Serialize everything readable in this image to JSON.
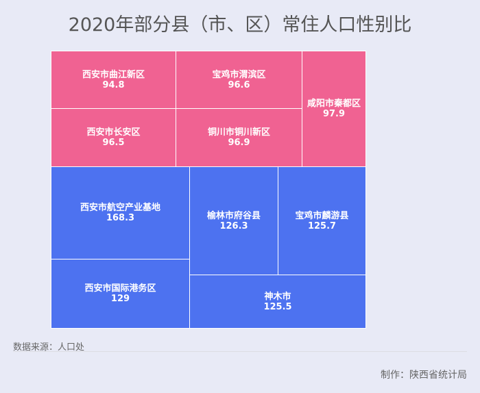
{
  "chart_data": {
    "type": "treemap",
    "title": "2020年部分县（市、区）常住人口性别比",
    "groups": [
      {
        "color": "#f06292",
        "items": [
          {
            "name": "西安市曲江新区",
            "value": 94.8
          },
          {
            "name": "西安市长安区",
            "value": 96.5
          },
          {
            "name": "宝鸡市渭滨区",
            "value": 96.6
          },
          {
            "name": "铜川市铜川新区",
            "value": 96.9
          },
          {
            "name": "咸阳市秦都区",
            "value": 97.9
          }
        ]
      },
      {
        "color": "#4d72f0",
        "items": [
          {
            "name": "西安市航空产业基地",
            "value": 168.3
          },
          {
            "name": "西安市国际港务区",
            "value": 129
          },
          {
            "name": "榆林市府谷县",
            "value": 126.3
          },
          {
            "name": "宝鸡市麟游县",
            "value": 125.7
          },
          {
            "name": "神木市",
            "value": 125.5
          }
        ]
      }
    ]
  },
  "footer": {
    "source": "数据来源：人口处",
    "credit": "制作：陕西省统计局"
  }
}
